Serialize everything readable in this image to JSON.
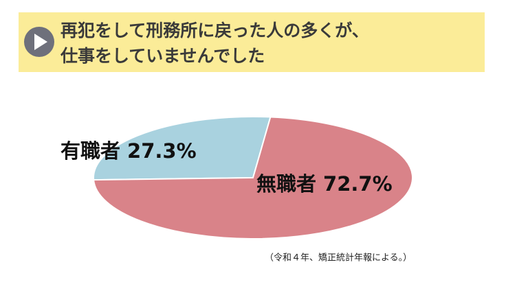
{
  "chart_data": {
    "type": "pie",
    "title": [
      "再犯をして刑務所に戻った人の多くが、",
      "仕事をしていませんでした"
    ],
    "categories": [
      "有職者",
      "無職者"
    ],
    "values": [
      27.3,
      72.7
    ],
    "value_labels": [
      "27.3%",
      "72.7%"
    ],
    "colors": [
      "#a9d2df",
      "#d98389"
    ],
    "note": "（令和４年、矯正統計年報による。）"
  }
}
